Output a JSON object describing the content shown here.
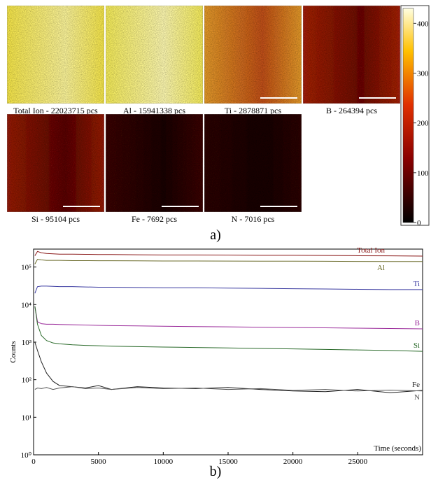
{
  "maps": [
    {
      "label": "Total Ion - 22023715 pcs",
      "color": "#f6e64a",
      "color2": "#fbf49a"
    },
    {
      "label": "Al - 15941338 pcs",
      "color": "#f5ec5a",
      "color2": "#fdf8b0"
    },
    {
      "label": "Ti - 2878871 pcs",
      "color": "#e39a2c",
      "color2": "#c0501a"
    },
    {
      "label": "B - 264394 pcs",
      "color": "#a42412",
      "color2": "#6a1008"
    },
    {
      "label": "Si - 95104 pcs",
      "color": "#962012",
      "color2": "#5a0c06"
    },
    {
      "label": "Fe - 7692 pcs",
      "color": "#3c0a06",
      "color2": "#1e0402"
    },
    {
      "label": "N - 7016 pcs",
      "color": "#2e0804",
      "color2": "#1a0302"
    }
  ],
  "colorbar": {
    "lim": [
      0,
      430
    ],
    "ticks": [
      0,
      100,
      200,
      300,
      400
    ]
  },
  "panel_a": "a)",
  "panel_b": "b)",
  "chart_data": {
    "type": "line",
    "ylabel": "Counts",
    "xlabel": "Time (seconds)",
    "log_y": true,
    "ylim": [
      1,
      300000
    ],
    "yticks": [
      {
        "value": 1,
        "label": "10⁰"
      },
      {
        "value": 10,
        "label": "10¹"
      },
      {
        "value": 100,
        "label": "10²"
      },
      {
        "value": 1000,
        "label": "10³"
      },
      {
        "value": 10000,
        "label": "10⁴"
      },
      {
        "value": 100000,
        "label": "10⁵"
      }
    ],
    "xlim": [
      0,
      30000
    ],
    "xticks": [
      0,
      5000,
      10000,
      15000,
      20000,
      25000
    ],
    "x": [
      100,
      300,
      600,
      1000,
      1500,
      2000,
      3000,
      4000,
      5000,
      6000,
      8000,
      10000,
      12500,
      15000,
      17500,
      20000,
      22500,
      25000,
      27500,
      30000
    ],
    "series": [
      {
        "name": "Total Ion",
        "color": "#8b1a1a",
        "values": [
          200000,
          260000,
          240000,
          230000,
          225000,
          220000,
          220000,
          218000,
          215000,
          215000,
          212000,
          210000,
          210000,
          208000,
          205000,
          205000,
          203000,
          200000,
          198000,
          195000
        ]
      },
      {
        "name": "Al",
        "color": "#6b6b2a",
        "values": [
          120000,
          160000,
          155000,
          150000,
          150000,
          150000,
          148000,
          148000,
          147000,
          147000,
          146000,
          145000,
          145000,
          144000,
          143000,
          143000,
          142000,
          141000,
          140000,
          140000
        ]
      },
      {
        "name": "Ti",
        "color": "#3a3aa0",
        "values": [
          20000,
          30000,
          31000,
          31000,
          30500,
          30000,
          30000,
          29500,
          29000,
          29000,
          28500,
          28000,
          28000,
          27500,
          27000,
          26500,
          26000,
          25500,
          25000,
          25000
        ]
      },
      {
        "name": "B",
        "color": "#9a2a9a",
        "values": [
          9000,
          3500,
          3100,
          3000,
          3000,
          2950,
          2900,
          2850,
          2800,
          2750,
          2700,
          2650,
          2600,
          2550,
          2500,
          2450,
          2400,
          2350,
          2300,
          2250
        ]
      },
      {
        "name": "Si",
        "color": "#2a6a2a",
        "values": [
          9000,
          3000,
          1500,
          1100,
          950,
          900,
          850,
          820,
          800,
          780,
          760,
          740,
          720,
          700,
          680,
          660,
          640,
          620,
          600,
          570
        ]
      },
      {
        "name": "Fe",
        "color": "#222222",
        "values": [
          1000,
          600,
          300,
          150,
          90,
          70,
          65,
          60,
          70,
          55,
          65,
          60,
          58,
          62,
          55,
          50,
          48,
          55,
          45,
          52
        ]
      },
      {
        "name": "N",
        "color": "#555555",
        "values": [
          55,
          60,
          58,
          62,
          55,
          60,
          65,
          58,
          60,
          55,
          62,
          58,
          60,
          55,
          58,
          52,
          55,
          50,
          53,
          50
        ]
      }
    ]
  }
}
